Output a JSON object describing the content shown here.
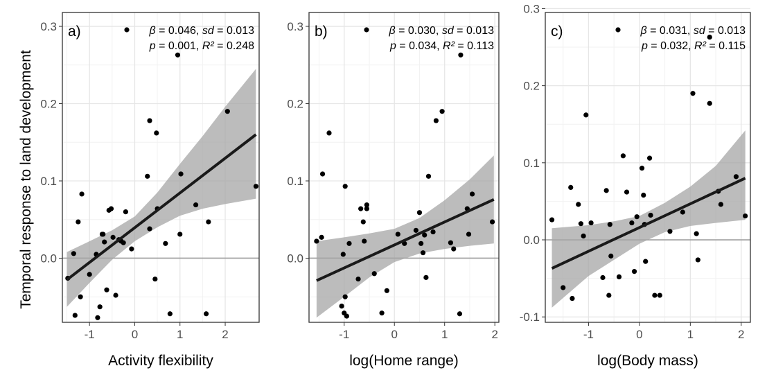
{
  "figure": {
    "ylabel": "Temporal response to land development",
    "colors": {
      "point": "#000000",
      "line": "#1a1a1a",
      "ribbon": "#a6a6a6",
      "grid": "#e6e6e6",
      "zero": "#9e9e9e",
      "border": "#333333"
    }
  },
  "chart_data": [
    {
      "type": "scatter",
      "panel": "a)",
      "xlabel": "Activity flexibility",
      "xlim": [
        -1.6,
        2.75
      ],
      "ylim": [
        -0.083,
        0.318
      ],
      "xticks": [
        -1,
        0,
        1,
        2
      ],
      "yticks": [
        0.0,
        0.1,
        0.2,
        0.3
      ],
      "ytick_labels": [
        "0.0",
        "0.1",
        "0.2",
        "0.3"
      ],
      "stats": {
        "beta": "0.046",
        "sd": "0.013",
        "p": "0.001",
        "r2": "0.248"
      },
      "fit": {
        "x0": -1.5,
        "y0": -0.028,
        "x1": 2.68,
        "y1": 0.16
      },
      "ci": [
        {
          "x": -1.5,
          "lo": -0.063,
          "hi": 0.008
        },
        {
          "x": -1.0,
          "lo": -0.032,
          "hi": 0.022
        },
        {
          "x": -0.5,
          "lo": -0.002,
          "hi": 0.036
        },
        {
          "x": 0.0,
          "lo": 0.022,
          "hi": 0.054
        },
        {
          "x": 0.5,
          "lo": 0.04,
          "hi": 0.085
        },
        {
          "x": 1.0,
          "lo": 0.055,
          "hi": 0.122
        },
        {
          "x": 1.5,
          "lo": 0.064,
          "hi": 0.158
        },
        {
          "x": 2.0,
          "lo": 0.07,
          "hi": 0.196
        },
        {
          "x": 2.68,
          "lo": 0.077,
          "hi": 0.245
        }
      ],
      "points": [
        [
          -1.48,
          -0.026
        ],
        [
          -1.35,
          0.006
        ],
        [
          -1.32,
          -0.074
        ],
        [
          -1.25,
          0.047
        ],
        [
          -1.2,
          -0.05
        ],
        [
          -1.17,
          0.083
        ],
        [
          -1.0,
          -0.021
        ],
        [
          -0.85,
          0.005
        ],
        [
          -0.82,
          -0.077
        ],
        [
          -0.77,
          -0.063
        ],
        [
          -0.72,
          0.031
        ],
        [
          -0.7,
          0.031
        ],
        [
          -0.67,
          0.021
        ],
        [
          -0.62,
          -0.041
        ],
        [
          -0.57,
          0.062
        ],
        [
          -0.52,
          0.064
        ],
        [
          -0.48,
          0.027
        ],
        [
          -0.42,
          -0.048
        ],
        [
          -0.35,
          0.024
        ],
        [
          -0.3,
          0.022
        ],
        [
          -0.25,
          0.02
        ],
        [
          -0.2,
          0.06
        ],
        [
          -0.07,
          0.012
        ],
        [
          0.28,
          0.106
        ],
        [
          0.33,
          0.178
        ],
        [
          0.33,
          0.038
        ],
        [
          0.45,
          -0.027
        ],
        [
          0.48,
          0.162
        ],
        [
          0.5,
          0.064
        ],
        [
          0.68,
          0.019
        ],
        [
          0.78,
          -0.072
        ],
        [
          0.95,
          0.263
        ],
        [
          1.0,
          0.031
        ],
        [
          1.02,
          0.109
        ],
        [
          1.35,
          0.069
        ],
        [
          1.58,
          -0.072
        ],
        [
          1.63,
          0.047
        ],
        [
          2.05,
          0.19
        ],
        [
          2.68,
          0.093
        ]
      ]
    },
    {
      "type": "scatter",
      "panel": "b)",
      "xlabel": "log(Home range)",
      "xlim": [
        -1.7,
        2.08
      ],
      "ylim": [
        -0.083,
        0.318
      ],
      "xticks": [
        -1,
        0,
        1,
        2
      ],
      "yticks": [
        0.0,
        0.1,
        0.2,
        0.3
      ],
      "ytick_labels": [
        "0.0",
        "0.1",
        "0.2",
        "0.3"
      ],
      "stats": {
        "beta": "0.030",
        "sd": "0.013",
        "p": "0.034",
        "r2": "0.113"
      },
      "fit": {
        "x0": -1.55,
        "y0": -0.029,
        "x1": 1.98,
        "y1": 0.076
      },
      "ci": [
        {
          "x": -1.55,
          "lo": -0.077,
          "hi": 0.022
        },
        {
          "x": -1.0,
          "lo": -0.05,
          "hi": 0.027
        },
        {
          "x": -0.5,
          "lo": -0.025,
          "hi": 0.032
        },
        {
          "x": 0.0,
          "lo": -0.005,
          "hi": 0.038
        },
        {
          "x": 0.5,
          "lo": 0.006,
          "hi": 0.052
        },
        {
          "x": 1.0,
          "lo": 0.012,
          "hi": 0.075
        },
        {
          "x": 1.5,
          "lo": 0.016,
          "hi": 0.102
        },
        {
          "x": 1.98,
          "lo": 0.019,
          "hi": 0.133
        }
      ],
      "points": [
        [
          -1.55,
          0.022
        ],
        [
          -1.45,
          0.027
        ],
        [
          -1.43,
          0.109
        ],
        [
          -1.3,
          0.162
        ],
        [
          -1.05,
          -0.062
        ],
        [
          -1.02,
          0.005
        ],
        [
          -1.0,
          -0.071
        ],
        [
          -0.98,
          0.093
        ],
        [
          -0.98,
          -0.05
        ],
        [
          -0.95,
          -0.075
        ],
        [
          -0.9,
          0.019
        ],
        [
          -0.72,
          -0.027
        ],
        [
          -0.67,
          0.064
        ],
        [
          -0.62,
          0.047
        ],
        [
          -0.6,
          0.022
        ],
        [
          -0.55,
          0.064
        ],
        [
          -0.55,
          0.069
        ],
        [
          -0.4,
          -0.02
        ],
        [
          -0.25,
          -0.071
        ],
        [
          -0.15,
          -0.042
        ],
        [
          0.07,
          0.031
        ],
        [
          0.2,
          0.019
        ],
        [
          0.43,
          0.036
        ],
        [
          0.5,
          0.059
        ],
        [
          0.53,
          0.019
        ],
        [
          0.57,
          0.007
        ],
        [
          0.6,
          0.03
        ],
        [
          0.63,
          -0.025
        ],
        [
          0.68,
          0.106
        ],
        [
          0.77,
          0.034
        ],
        [
          0.83,
          0.178
        ],
        [
          0.95,
          0.19
        ],
        [
          1.12,
          0.02
        ],
        [
          1.18,
          0.012
        ],
        [
          1.3,
          -0.072
        ],
        [
          1.32,
          0.263
        ],
        [
          1.45,
          0.064
        ],
        [
          1.48,
          0.031
        ],
        [
          1.55,
          0.083
        ],
        [
          1.95,
          0.047
        ]
      ]
    },
    {
      "type": "scatter",
      "panel": "c)",
      "xlabel": "log(Body mass)",
      "xlim": [
        -1.85,
        2.18
      ],
      "ylim": [
        -0.107,
        0.295
      ],
      "xticks": [
        -1,
        0,
        1,
        2
      ],
      "yticks": [
        -0.1,
        0.0,
        0.1,
        0.2,
        0.3
      ],
      "ytick_labels": [
        "-0.1",
        "0.0",
        "0.1",
        "0.2",
        "0.3"
      ],
      "stats": {
        "beta": "0.031",
        "sd": "0.013",
        "p": "0.032",
        "r2": "0.115"
      },
      "fit": {
        "x0": -1.72,
        "y0": -0.037,
        "x1": 2.08,
        "y1": 0.08
      },
      "ci": [
        {
          "x": -1.72,
          "lo": -0.088,
          "hi": 0.015
        },
        {
          "x": -1.0,
          "lo": -0.047,
          "hi": 0.019
        },
        {
          "x": -0.5,
          "lo": -0.026,
          "hi": 0.024
        },
        {
          "x": 0.0,
          "lo": -0.005,
          "hi": 0.031
        },
        {
          "x": 0.5,
          "lo": 0.01,
          "hi": 0.048
        },
        {
          "x": 1.0,
          "lo": 0.018,
          "hi": 0.069
        },
        {
          "x": 1.5,
          "lo": 0.022,
          "hi": 0.096
        },
        {
          "x": 2.08,
          "lo": 0.026,
          "hi": 0.142
        }
      ],
      "points": [
        [
          -1.72,
          0.026
        ],
        [
          -1.5,
          -0.062
        ],
        [
          -1.35,
          0.068
        ],
        [
          -1.32,
          -0.076
        ],
        [
          -1.2,
          0.046
        ],
        [
          -1.15,
          0.021
        ],
        [
          -1.1,
          0.005
        ],
        [
          -1.05,
          0.162
        ],
        [
          -0.95,
          0.022
        ],
        [
          -0.72,
          -0.049
        ],
        [
          -0.65,
          0.064
        ],
        [
          -0.6,
          -0.072
        ],
        [
          -0.58,
          0.02
        ],
        [
          -0.56,
          -0.021
        ],
        [
          -0.4,
          -0.048
        ],
        [
          -0.32,
          0.109
        ],
        [
          -0.25,
          0.062
        ],
        [
          -0.15,
          0.022
        ],
        [
          -0.1,
          -0.041
        ],
        [
          -0.05,
          0.03
        ],
        [
          0.05,
          0.093
        ],
        [
          0.08,
          0.058
        ],
        [
          0.1,
          0.02
        ],
        [
          0.12,
          -0.028
        ],
        [
          0.2,
          0.106
        ],
        [
          0.22,
          0.032
        ],
        [
          0.3,
          -0.072
        ],
        [
          0.4,
          -0.072
        ],
        [
          0.6,
          0.011
        ],
        [
          0.85,
          0.036
        ],
        [
          1.05,
          0.19
        ],
        [
          1.12,
          0.008
        ],
        [
          1.15,
          -0.026
        ],
        [
          1.38,
          0.263
        ],
        [
          1.38,
          0.177
        ],
        [
          1.55,
          0.063
        ],
        [
          1.6,
          0.046
        ],
        [
          1.9,
          0.082
        ],
        [
          2.08,
          0.031
        ]
      ]
    }
  ]
}
